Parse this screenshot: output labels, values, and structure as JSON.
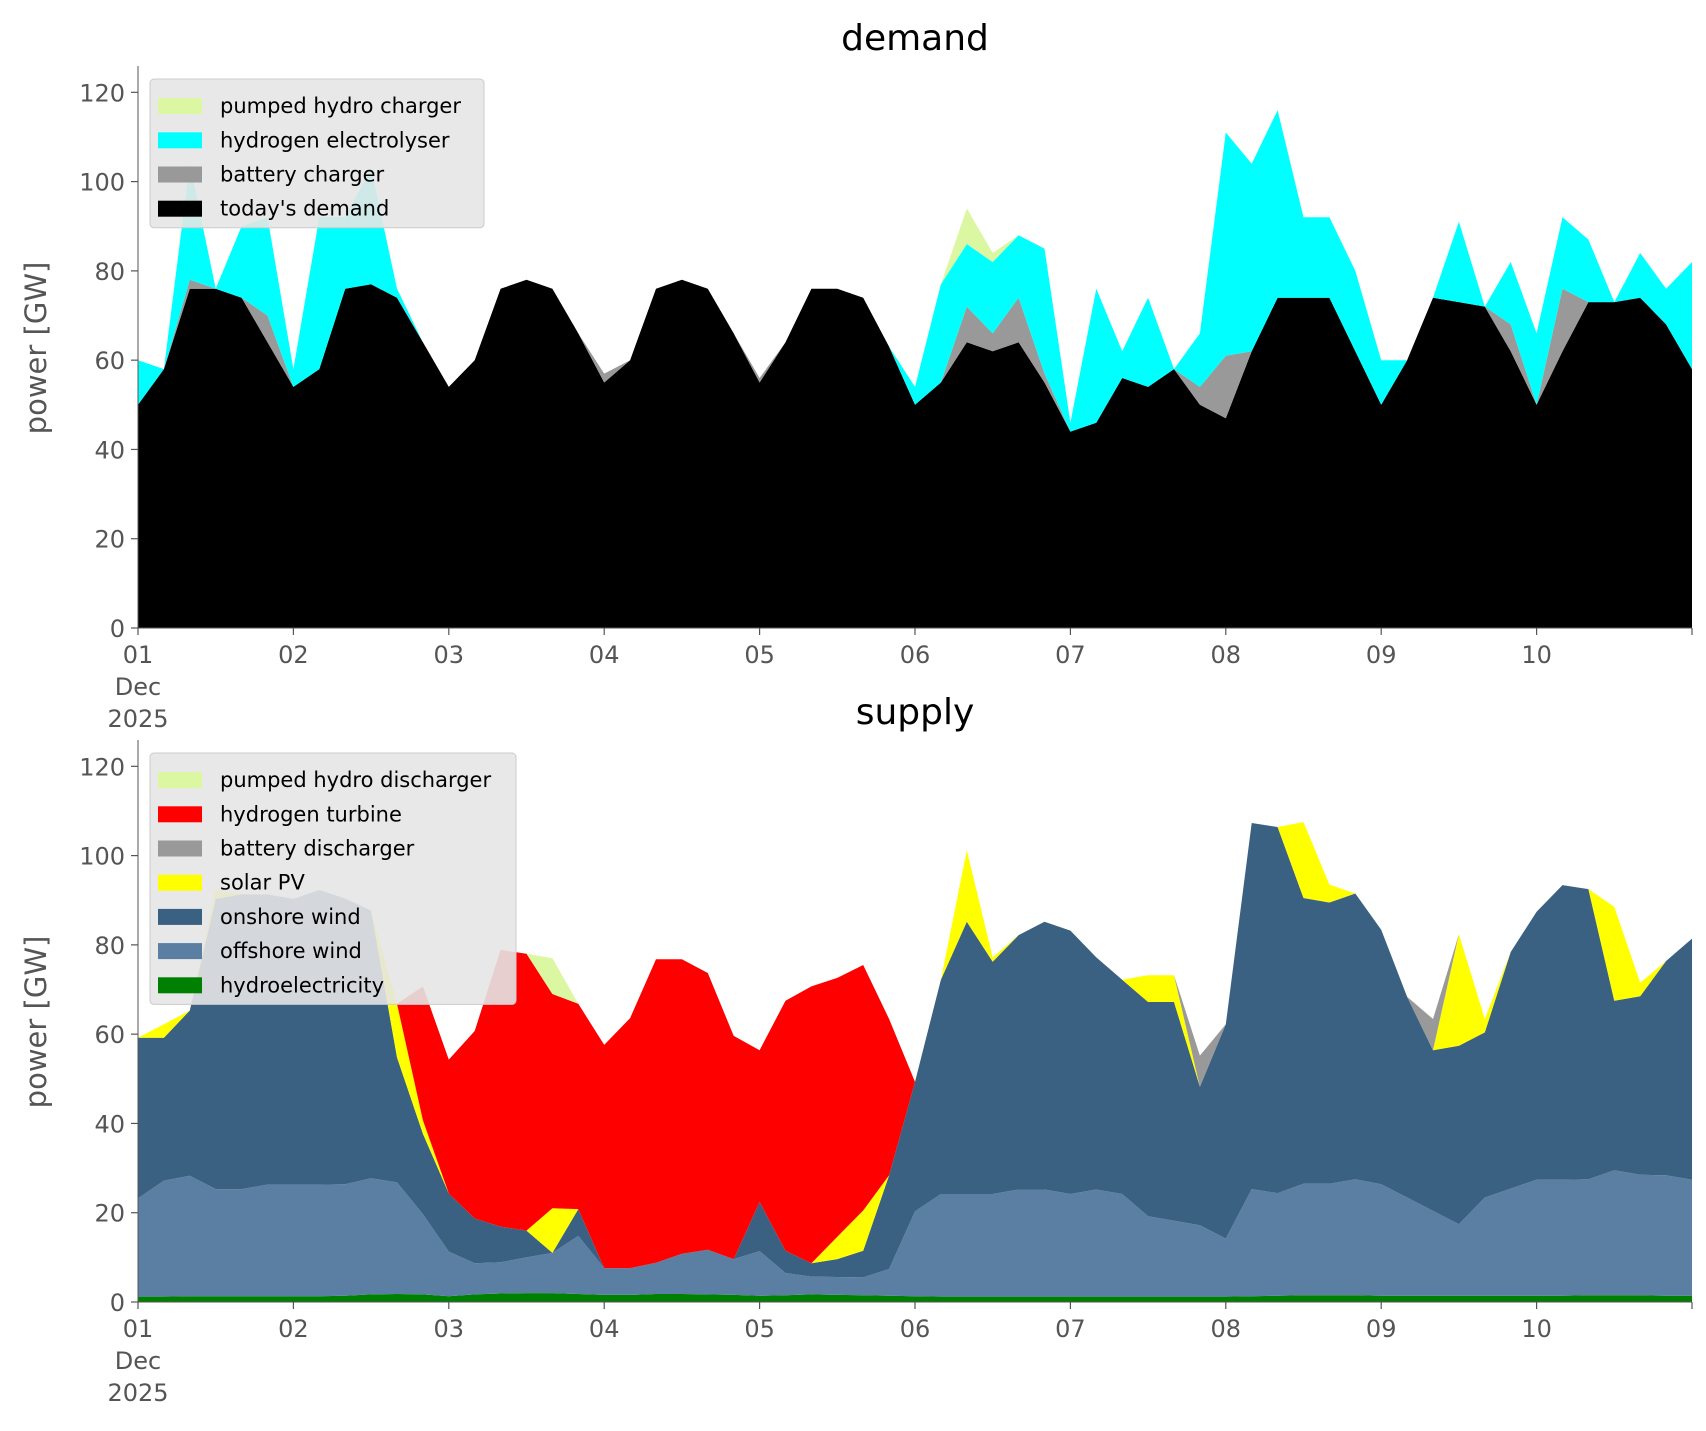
{
  "chart_data": [
    {
      "type": "area",
      "stacked": true,
      "title": "demand",
      "xlabel": "",
      "ylabel": "power [GW]",
      "ylim": [
        0,
        125
      ],
      "yticks": [
        0,
        20,
        40,
        60,
        80,
        100,
        120
      ],
      "xlim": [
        "2025-12-01T00:00",
        "2025-12-11T00:00"
      ],
      "xticks": [
        {
          "date": "2025-12-01",
          "label": "01",
          "sub": [
            "Dec",
            "2025"
          ]
        },
        {
          "date": "2025-12-02",
          "label": "02"
        },
        {
          "date": "2025-12-03",
          "label": "03"
        },
        {
          "date": "2025-12-04",
          "label": "04"
        },
        {
          "date": "2025-12-05",
          "label": "05"
        },
        {
          "date": "2025-12-06",
          "label": "06"
        },
        {
          "date": "2025-12-07",
          "label": "07"
        },
        {
          "date": "2025-12-08",
          "label": "08"
        },
        {
          "date": "2025-12-09",
          "label": "09"
        },
        {
          "date": "2025-12-10",
          "label": "10"
        }
      ],
      "grid": false,
      "legend_position": "top-left",
      "x": [
        "2025-12-01T00:00",
        "2025-12-01T04:00",
        "2025-12-01T08:00",
        "2025-12-01T12:00",
        "2025-12-01T16:00",
        "2025-12-01T20:00",
        "2025-12-02T00:00",
        "2025-12-02T04:00",
        "2025-12-02T08:00",
        "2025-12-02T12:00",
        "2025-12-02T16:00",
        "2025-12-02T20:00",
        "2025-12-03T00:00",
        "2025-12-03T04:00",
        "2025-12-03T08:00",
        "2025-12-03T12:00",
        "2025-12-03T16:00",
        "2025-12-03T20:00",
        "2025-12-04T00:00",
        "2025-12-04T04:00",
        "2025-12-04T08:00",
        "2025-12-04T12:00",
        "2025-12-04T16:00",
        "2025-12-04T20:00",
        "2025-12-05T00:00",
        "2025-12-05T04:00",
        "2025-12-05T08:00",
        "2025-12-05T12:00",
        "2025-12-05T16:00",
        "2025-12-05T20:00",
        "2025-12-06T00:00",
        "2025-12-06T04:00",
        "2025-12-06T08:00",
        "2025-12-06T12:00",
        "2025-12-06T16:00",
        "2025-12-06T20:00",
        "2025-12-07T00:00",
        "2025-12-07T04:00",
        "2025-12-07T08:00",
        "2025-12-07T12:00",
        "2025-12-07T16:00",
        "2025-12-07T20:00",
        "2025-12-08T00:00",
        "2025-12-08T04:00",
        "2025-12-08T08:00",
        "2025-12-08T12:00",
        "2025-12-08T16:00",
        "2025-12-08T20:00",
        "2025-12-09T00:00",
        "2025-12-09T04:00",
        "2025-12-09T08:00",
        "2025-12-09T12:00",
        "2025-12-09T16:00",
        "2025-12-09T20:00",
        "2025-12-10T00:00",
        "2025-12-10T04:00",
        "2025-12-10T08:00",
        "2025-12-10T12:00",
        "2025-12-10T16:00",
        "2025-12-10T20:00",
        "2025-12-11T00:00"
      ],
      "series": [
        {
          "name": "today's demand",
          "color": "#000000",
          "values": [
            50,
            58,
            76,
            76,
            74,
            64,
            54,
            58,
            76,
            77,
            74,
            64,
            54,
            60,
            76,
            78,
            76,
            66,
            55,
            60,
            76,
            78,
            76,
            66,
            55,
            64,
            76,
            76,
            74,
            63,
            50,
            55,
            64,
            62,
            64,
            55,
            44,
            46,
            56,
            54,
            58,
            50,
            47,
            62,
            74,
            74,
            74,
            62,
            50,
            60,
            74,
            73,
            72,
            62,
            50,
            62,
            73,
            73,
            74,
            68,
            58
          ]
        },
        {
          "name": "battery charger",
          "color": "#999999",
          "values": [
            0,
            0,
            2,
            0,
            0,
            6,
            0,
            0,
            0,
            0,
            0,
            0,
            0,
            0,
            0,
            0,
            0,
            0,
            2,
            0,
            0,
            0,
            0,
            0,
            1,
            0,
            0,
            0,
            0,
            0,
            0,
            0,
            8,
            4,
            10,
            2,
            0,
            0,
            0,
            0,
            0,
            4,
            14,
            0,
            0,
            0,
            0,
            0,
            0,
            0,
            0,
            0,
            0,
            6,
            0,
            14,
            0,
            0,
            0,
            0,
            0
          ]
        },
        {
          "name": "hydrogen electrolyser",
          "color": "#00ffff",
          "values": [
            10,
            0,
            26,
            0,
            16,
            22,
            4,
            34,
            16,
            26,
            2,
            0,
            0,
            0,
            0,
            0,
            0,
            0,
            0,
            0,
            0,
            0,
            0,
            0,
            0,
            0,
            0,
            0,
            0,
            0,
            4,
            22,
            14,
            16,
            14,
            28,
            2,
            30,
            6,
            20,
            0,
            12,
            50,
            42,
            42,
            18,
            18,
            18,
            10,
            0,
            0,
            18,
            0,
            14,
            16,
            16,
            14,
            0,
            10,
            8,
            24
          ]
        },
        {
          "name": "pumped hydro charger",
          "color": "#dcf7a1",
          "values": [
            0,
            0,
            0,
            0,
            0,
            0,
            0,
            0,
            0,
            0,
            0,
            0,
            0,
            0,
            0,
            0,
            0,
            0,
            0,
            0,
            0,
            0,
            0,
            0,
            0,
            0,
            0,
            0,
            0,
            0,
            0,
            0,
            8,
            2,
            0,
            0,
            0,
            0,
            0,
            0,
            0,
            0,
            0,
            0,
            0,
            0,
            0,
            0,
            0,
            0,
            0,
            0,
            0,
            0,
            0,
            0,
            0,
            0,
            0,
            0,
            0
          ]
        }
      ]
    },
    {
      "type": "area",
      "stacked": true,
      "title": "supply",
      "xlabel": "",
      "ylabel": "power [GW]",
      "ylim": [
        0,
        125
      ],
      "yticks": [
        0,
        20,
        40,
        60,
        80,
        100,
        120
      ],
      "xlim": [
        "2025-12-01T00:00",
        "2025-12-11T00:00"
      ],
      "xticks": [
        {
          "date": "2025-12-01",
          "label": "01",
          "sub": [
            "Dec",
            "2025"
          ]
        },
        {
          "date": "2025-12-02",
          "label": "02"
        },
        {
          "date": "2025-12-03",
          "label": "03"
        },
        {
          "date": "2025-12-04",
          "label": "04"
        },
        {
          "date": "2025-12-05",
          "label": "05"
        },
        {
          "date": "2025-12-06",
          "label": "06"
        },
        {
          "date": "2025-12-07",
          "label": "07"
        },
        {
          "date": "2025-12-08",
          "label": "08"
        },
        {
          "date": "2025-12-09",
          "label": "09"
        },
        {
          "date": "2025-12-10",
          "label": "10"
        }
      ],
      "grid": false,
      "legend_position": "top-left",
      "x": [
        "2025-12-01T00:00",
        "2025-12-01T04:00",
        "2025-12-01T08:00",
        "2025-12-01T12:00",
        "2025-12-01T16:00",
        "2025-12-01T20:00",
        "2025-12-02T00:00",
        "2025-12-02T04:00",
        "2025-12-02T08:00",
        "2025-12-02T12:00",
        "2025-12-02T16:00",
        "2025-12-02T20:00",
        "2025-12-03T00:00",
        "2025-12-03T04:00",
        "2025-12-03T08:00",
        "2025-12-03T12:00",
        "2025-12-03T16:00",
        "2025-12-03T20:00",
        "2025-12-04T00:00",
        "2025-12-04T04:00",
        "2025-12-04T08:00",
        "2025-12-04T12:00",
        "2025-12-04T16:00",
        "2025-12-04T20:00",
        "2025-12-05T00:00",
        "2025-12-05T04:00",
        "2025-12-05T08:00",
        "2025-12-05T12:00",
        "2025-12-05T16:00",
        "2025-12-05T20:00",
        "2025-12-06T00:00",
        "2025-12-06T04:00",
        "2025-12-06T08:00",
        "2025-12-06T12:00",
        "2025-12-06T16:00",
        "2025-12-06T20:00",
        "2025-12-07T00:00",
        "2025-12-07T04:00",
        "2025-12-07T08:00",
        "2025-12-07T12:00",
        "2025-12-07T16:00",
        "2025-12-07T20:00",
        "2025-12-08T00:00",
        "2025-12-08T04:00",
        "2025-12-08T08:00",
        "2025-12-08T12:00",
        "2025-12-08T16:00",
        "2025-12-08T20:00",
        "2025-12-09T00:00",
        "2025-12-09T04:00",
        "2025-12-09T08:00",
        "2025-12-09T12:00",
        "2025-12-09T16:00",
        "2025-12-09T20:00",
        "2025-12-10T00:00",
        "2025-12-10T04:00",
        "2025-12-10T08:00",
        "2025-12-10T12:00",
        "2025-12-10T16:00",
        "2025-12-10T20:00",
        "2025-12-11T00:00"
      ],
      "series": [
        {
          "name": "hydroelectricity",
          "color": "#008000",
          "values": [
            1.2,
            1.2,
            1.3,
            1.3,
            1.3,
            1.3,
            1.3,
            1.3,
            1.4,
            1.7,
            1.8,
            1.7,
            1.3,
            1.7,
            1.9,
            2.0,
            2.0,
            1.8,
            1.6,
            1.6,
            1.8,
            1.8,
            1.7,
            1.6,
            1.4,
            1.5,
            1.7,
            1.6,
            1.5,
            1.4,
            1.3,
            1.2,
            1.2,
            1.2,
            1.2,
            1.2,
            1.2,
            1.2,
            1.2,
            1.2,
            1.2,
            1.2,
            1.2,
            1.3,
            1.4,
            1.5,
            1.5,
            1.5,
            1.4,
            1.4,
            1.4,
            1.4,
            1.4,
            1.4,
            1.4,
            1.4,
            1.5,
            1.5,
            1.5,
            1.4,
            1.4
          ]
        },
        {
          "name": "offshore wind",
          "color": "#5b7fa3",
          "values": [
            22,
            26,
            27,
            24,
            24,
            25,
            25,
            25,
            25,
            26,
            25,
            18,
            10,
            7,
            7,
            8,
            9,
            13,
            6,
            6,
            7,
            9,
            10,
            8,
            10,
            5,
            4,
            4,
            4,
            6,
            19,
            23,
            23,
            23,
            24,
            24,
            23,
            24,
            23,
            18,
            17,
            16,
            13,
            24,
            23,
            25,
            25,
            26,
            25,
            22,
            19,
            16,
            22,
            24,
            26,
            26,
            26,
            28,
            27,
            27,
            26
          ]
        },
        {
          "name": "onshore wind",
          "color": "#3b6182",
          "values": [
            36,
            32,
            37,
            65,
            66,
            65,
            64,
            66,
            64,
            60,
            28,
            18,
            13,
            10,
            8,
            6,
            0,
            6,
            0,
            0,
            0,
            0,
            0,
            0,
            11,
            5,
            3,
            4,
            6,
            21,
            29,
            48,
            61,
            52,
            57,
            60,
            59,
            52,
            48,
            48,
            49,
            31,
            48,
            82,
            82,
            64,
            63,
            64,
            57,
            45,
            36,
            40,
            37,
            53,
            60,
            66,
            65,
            38,
            40,
            48,
            54
          ]
        },
        {
          "name": "solar PV",
          "color": "#ffff00",
          "values": [
            0,
            3,
            0,
            2,
            0,
            0,
            0,
            0,
            0,
            0,
            12,
            3,
            0,
            0,
            0,
            0,
            10,
            0,
            0,
            0,
            0,
            0,
            0,
            0,
            0,
            0,
            0,
            5,
            9,
            0,
            0,
            0,
            16,
            1,
            0,
            0,
            0,
            0,
            0,
            6,
            6,
            0,
            0,
            0,
            0,
            17,
            4,
            0,
            0,
            0,
            0,
            25,
            3,
            0,
            0,
            0,
            0,
            21,
            3,
            0,
            0
          ]
        },
        {
          "name": "battery discharger",
          "color": "#999999",
          "values": [
            0,
            0,
            0,
            0,
            0,
            0,
            0,
            0,
            0,
            0,
            0,
            0,
            0,
            0,
            0,
            0,
            0,
            0,
            0,
            0,
            0,
            0,
            0,
            0,
            0,
            0,
            0,
            0,
            0,
            0,
            0,
            0,
            0,
            0,
            0,
            0,
            0,
            0,
            0,
            0,
            0,
            7,
            0,
            0,
            0,
            0,
            0,
            0,
            0,
            0,
            7,
            0,
            0,
            0,
            0,
            0,
            0,
            0,
            0,
            0,
            0
          ]
        },
        {
          "name": "hydrogen turbine",
          "color": "#ff0000",
          "values": [
            0,
            0,
            0,
            0,
            0,
            0,
            0,
            0,
            0,
            0,
            0,
            30,
            30,
            42,
            62,
            62,
            48,
            46,
            50,
            56,
            68,
            66,
            62,
            50,
            34,
            56,
            62,
            58,
            55,
            35,
            0,
            0,
            0,
            0,
            0,
            0,
            0,
            0,
            0,
            0,
            0,
            0,
            0,
            0,
            0,
            0,
            0,
            0,
            0,
            0,
            0,
            0,
            0,
            0,
            0,
            0,
            0,
            0,
            0,
            0,
            0
          ]
        },
        {
          "name": "pumped hydro discharger",
          "color": "#dcf7a1",
          "values": [
            0,
            0,
            0,
            0,
            0,
            0,
            0,
            0,
            0,
            0,
            0,
            0,
            0,
            0,
            0,
            0,
            8,
            0,
            0,
            0,
            0,
            0,
            0,
            0,
            0,
            0,
            0,
            0,
            0,
            0,
            0,
            0,
            0,
            0,
            0,
            0,
            0,
            0,
            0,
            0,
            0,
            0,
            0,
            0,
            0,
            0,
            0,
            0,
            0,
            0,
            0,
            0,
            0,
            0,
            0,
            0,
            0,
            0,
            0,
            0,
            0
          ]
        }
      ]
    }
  ]
}
